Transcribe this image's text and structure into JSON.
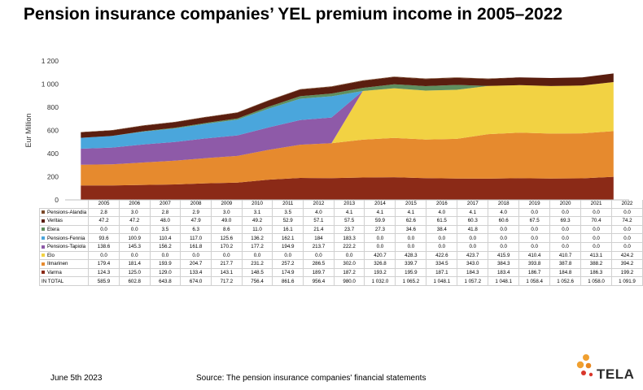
{
  "title": "Pension insurance companies’ YEL premium income in 2005–2022",
  "footer": {
    "date": "June 5th 2023",
    "source": "Source: The pension insurance companies' financial statements",
    "logo_text": "TELA"
  },
  "chart_data": {
    "type": "area",
    "stacked": true,
    "ylabel": "Eur  Million",
    "ylim": [
      0,
      1200
    ],
    "yticks": [
      "0",
      "200",
      "400",
      "600",
      "800",
      "1 000",
      "1 200"
    ],
    "grid": false,
    "x": [
      "2005",
      "2006",
      "2007",
      "2008",
      "2009",
      "2010",
      "2011",
      "2012",
      "2013",
      "2014",
      "2015",
      "2016",
      "2017",
      "2018",
      "2019",
      "2020",
      "2021",
      "2022"
    ],
    "series": [
      {
        "name": "Varma",
        "color": "#8b2a17",
        "values": [
          124.3,
          125.0,
          129.0,
          133.4,
          143.1,
          148.5,
          174.9,
          189.7,
          187.2,
          193.2,
          195.9,
          187.1,
          184.3,
          183.4,
          186.7,
          184.8,
          186.3,
          199.2
        ],
        "labels": [
          "124.3",
          "125.0",
          "129.0",
          "133.4",
          "143.1",
          "148.5",
          "174.9",
          "189.7",
          "187.2",
          "193.2",
          "195.9",
          "187.1",
          "184.3",
          "183.4",
          "186.7",
          "184.8",
          "186.3",
          "199.2"
        ]
      },
      {
        "name": "Ilmarinen",
        "color": "#e68a2e",
        "values": [
          179.4,
          181.4,
          193.9,
          204.7,
          217.7,
          231.2,
          257.2,
          286.5,
          302.0,
          326.8,
          339.7,
          334.5,
          343.0,
          384.3,
          393.8,
          387.8,
          388.2,
          394.2
        ],
        "labels": [
          "179.4",
          "181.4",
          "193.9",
          "204.7",
          "217.7",
          "231.2",
          "257.2",
          "286.5",
          "302.0",
          "326.8",
          "339.7",
          "334.5",
          "343.0",
          "384.3",
          "393.8",
          "387.8",
          "388.2",
          "394.2"
        ]
      },
      {
        "name": "Elo",
        "color": "#f2d243",
        "values": [
          0,
          0,
          0,
          0,
          0,
          0,
          0,
          0,
          0,
          420.7,
          428.3,
          422.6,
          423.7,
          415.9,
          410.4,
          410.7,
          413.1,
          424.2
        ],
        "labels": [
          "0.0",
          "0.0",
          "0.0",
          "0.0",
          "0.0",
          "0.0",
          "0.0",
          "0.0",
          "0.0",
          "420.7",
          "428.3",
          "422.6",
          "423.7",
          "415.9",
          "410.4",
          "410.7",
          "413.1",
          "424.2"
        ]
      },
      {
        "name": "Pensions-Tapiola",
        "color": "#8e5aa8",
        "values": [
          138.6,
          145.3,
          156.2,
          161.8,
          170.2,
          177.2,
          194.9,
          213.7,
          222.2,
          0,
          0,
          0,
          0,
          0,
          0,
          0,
          0,
          0
        ],
        "labels": [
          "138.6",
          "145.3",
          "156.2",
          "161.8",
          "170.2",
          "177.2",
          "194.9",
          "213.7",
          "222.2",
          "0.0",
          "0.0",
          "0.0",
          "0.0",
          "0.0",
          "0.0",
          "0.0",
          "0.0",
          "0.0"
        ]
      },
      {
        "name": "Pensions-Fennia",
        "color": "#4aa6dc",
        "values": [
          93.6,
          100.9,
          110.4,
          117.0,
          125.6,
          136.2,
          162.1,
          184,
          183.3,
          0,
          0,
          0,
          0,
          0,
          0,
          0,
          0,
          0
        ],
        "labels": [
          "93.6",
          "100.9",
          "110.4",
          "117.0",
          "125.6",
          "136.2",
          "162.1",
          "184",
          "183.3",
          "0.0",
          "0.0",
          "0.0",
          "0.0",
          "0.0",
          "0.0",
          "0.0",
          "0.0",
          "0.0"
        ]
      },
      {
        "name": "Etera",
        "color": "#5f8f5f",
        "values": [
          0,
          0,
          3.5,
          6.3,
          8.6,
          11.0,
          16.1,
          21.4,
          23.7,
          27.3,
          34.6,
          38.4,
          41.8,
          0,
          0,
          0,
          0,
          0
        ],
        "labels": [
          "0.0",
          "0.0",
          "3.5",
          "6.3",
          "8.6",
          "11.0",
          "16.1",
          "21.4",
          "23.7",
          "27.3",
          "34.6",
          "38.4",
          "41.8",
          "0.0",
          "0.0",
          "0.0",
          "0.0",
          "0.0"
        ]
      },
      {
        "name": "Veritas",
        "color": "#5a1e0f",
        "values": [
          47.2,
          47.2,
          48.0,
          47.9,
          49.0,
          49.2,
          52.9,
          57.1,
          57.5,
          59.9,
          62.6,
          61.5,
          60.3,
          60.6,
          67.5,
          69.3,
          70.4,
          74.2
        ],
        "labels": [
          "47.2",
          "47.2",
          "48.0",
          "47.9",
          "49.0",
          "49.2",
          "52.9",
          "57.1",
          "57.5",
          "59.9",
          "62.6",
          "61.5",
          "60.3",
          "60.6",
          "67.5",
          "69.3",
          "70.4",
          "74.2"
        ]
      },
      {
        "name": "Pensions-Alandia",
        "color": "#7a4a2a",
        "values": [
          2.8,
          3.0,
          2.8,
          2.9,
          3.0,
          3.1,
          3.5,
          4.0,
          4.1,
          4.1,
          4.1,
          4.0,
          4.1,
          4.0,
          0,
          0,
          0,
          0
        ],
        "labels": [
          "2.8",
          "3.0",
          "2.8",
          "2.9",
          "3.0",
          "3.1",
          "3.5",
          "4.0",
          "4.1",
          "4.1",
          "4.1",
          "4.0",
          "4.1",
          "4.0",
          "0.0",
          "0.0",
          "0.0",
          "0.0"
        ]
      }
    ],
    "table_rows": [
      "Pensions-Alandia",
      "Veritas",
      "Etera",
      "Pensions-Fennia",
      "Pensions-Tapiola",
      "Elo",
      "Ilmarinen",
      "Varma"
    ],
    "total": {
      "name": "IN TOTAL",
      "labels": [
        "585.9",
        "602.8",
        "643.8",
        "674.0",
        "717.2",
        "756.4",
        "861.6",
        "956.4",
        "980.0",
        "1 032.0",
        "1 065.2",
        "1 048.1",
        "1 057.2",
        "1 048.1",
        "1 058.4",
        "1 052.6",
        "1 058.0",
        "1 091.9"
      ]
    }
  }
}
